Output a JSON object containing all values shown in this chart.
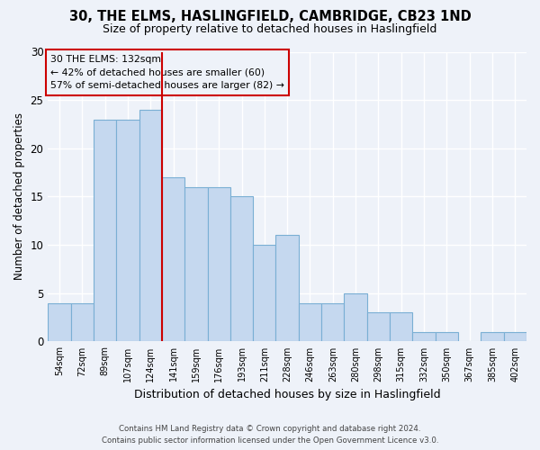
{
  "title1": "30, THE ELMS, HASLINGFIELD, CAMBRIDGE, CB23 1ND",
  "title2": "Size of property relative to detached houses in Haslingfield",
  "xlabel": "Distribution of detached houses by size in Haslingfield",
  "ylabel": "Number of detached properties",
  "annotation_title": "30 THE ELMS: 132sqm",
  "annotation_line1": "← 42% of detached houses are smaller (60)",
  "annotation_line2": "57% of semi-detached houses are larger (82) →",
  "footer1": "Contains HM Land Registry data © Crown copyright and database right 2024.",
  "footer2": "Contains public sector information licensed under the Open Government Licence v3.0.",
  "categories": [
    "54sqm",
    "72sqm",
    "89sqm",
    "107sqm",
    "124sqm",
    "141sqm",
    "159sqm",
    "176sqm",
    "193sqm",
    "211sqm",
    "228sqm",
    "246sqm",
    "263sqm",
    "280sqm",
    "298sqm",
    "315sqm",
    "332sqm",
    "350sqm",
    "367sqm",
    "385sqm",
    "402sqm"
  ],
  "values": [
    4,
    4,
    23,
    23,
    24,
    17,
    16,
    16,
    15,
    10,
    11,
    4,
    4,
    5,
    3,
    3,
    1,
    1,
    0,
    1,
    1
  ],
  "bar_color": "#c5d8ef",
  "bar_edge_color": "#7aafd4",
  "vline_color": "#cc0000",
  "annotation_box_color": "#cc0000",
  "background_color": "#eef2f9",
  "grid_color": "#ffffff",
  "ylim": [
    0,
    30
  ],
  "yticks": [
    0,
    5,
    10,
    15,
    20,
    25,
    30
  ]
}
